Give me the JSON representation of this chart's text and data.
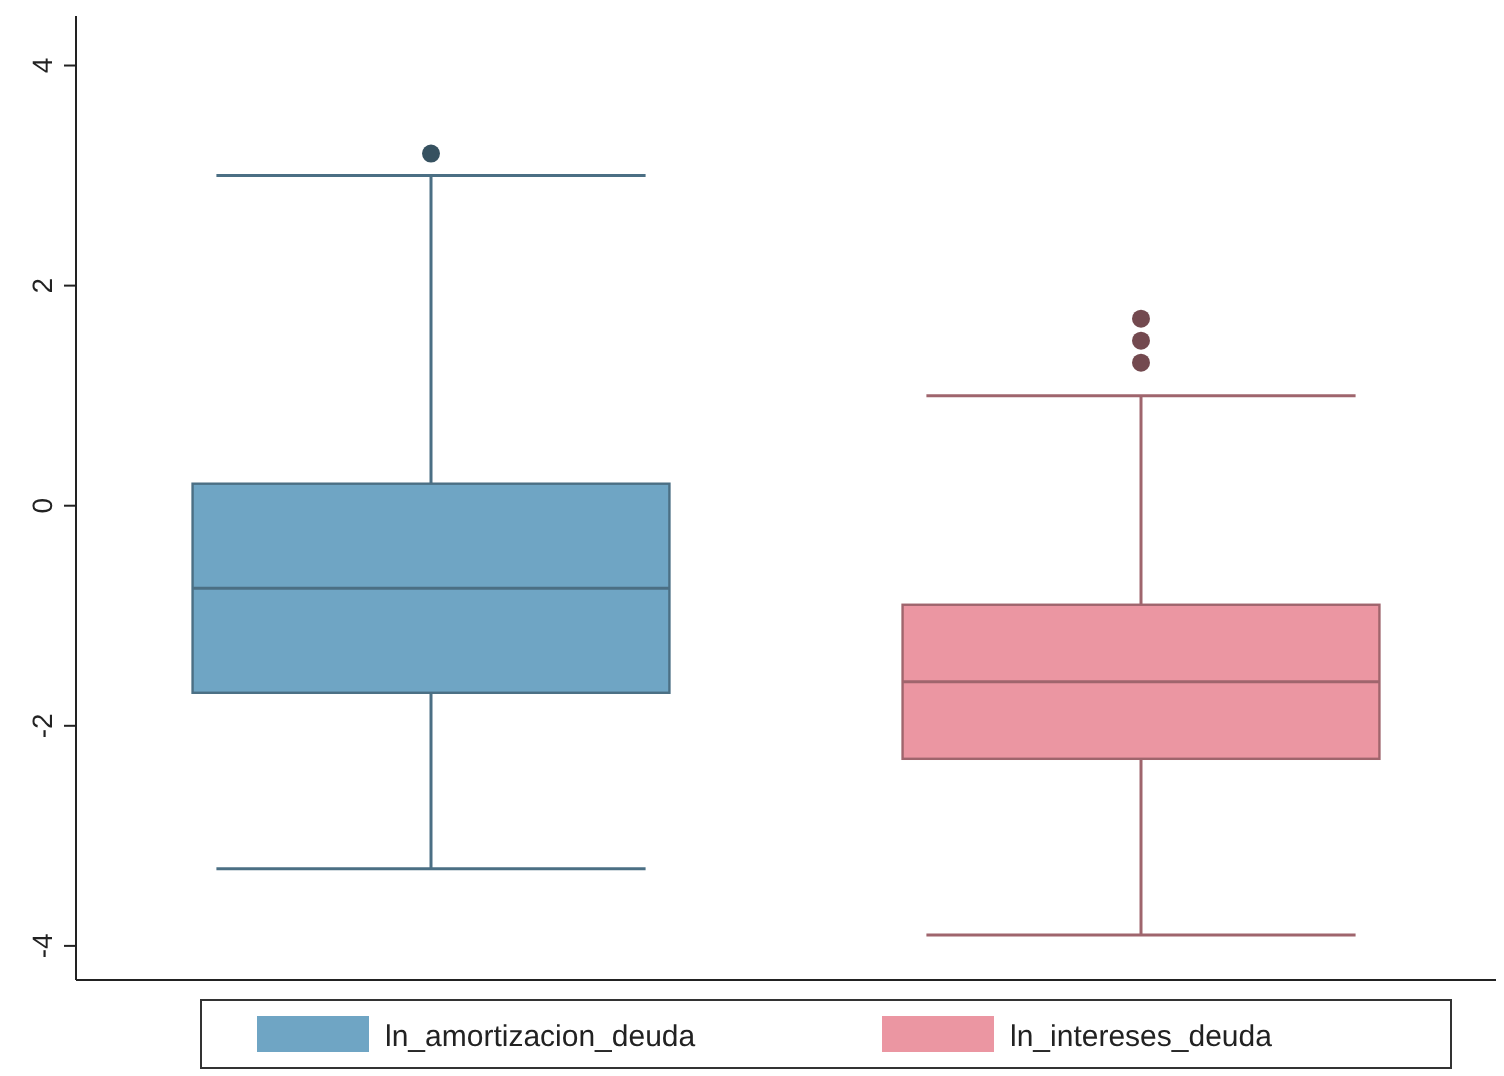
{
  "chart_data": {
    "type": "box",
    "categories": [
      null,
      null
    ],
    "ylim": [
      -4.31,
      4.45
    ],
    "yticks": [
      -4,
      -2,
      0,
      2,
      4
    ],
    "grid": false,
    "legend": "bottom",
    "series": [
      {
        "name": "ln_amortizacion_deuda",
        "color": "#6fa5c4",
        "boxes": [
          {
            "low": -3.3,
            "q1": -1.7,
            "median": -0.75,
            "q3": 0.2,
            "high": 3.0,
            "outliers": [
              3.2
            ]
          },
          null
        ]
      },
      {
        "name": "ln_intereses_deuda",
        "color": "#eb96a2",
        "boxes": [
          null,
          {
            "low": -3.9,
            "q1": -2.3,
            "median": -1.6,
            "q3": -0.9,
            "high": 1.0,
            "outliers": [
              1.3,
              1.5,
              1.7
            ]
          }
        ]
      }
    ]
  }
}
